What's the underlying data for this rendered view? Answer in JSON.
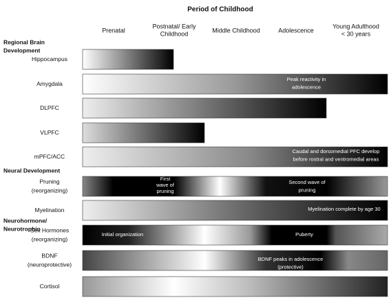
{
  "title": "Period of Childhood",
  "columns": [
    [
      "Prenatal"
    ],
    [
      "Postnatal/ Early",
      "Childhood"
    ],
    [
      "Middle Childhood"
    ],
    [
      "Adolescence"
    ],
    [
      "Young Adulthood",
      "< 30 years"
    ]
  ],
  "sections": [
    {
      "label": [
        "Regional Brain",
        "Development"
      ],
      "rows": [
        {
          "label": [
            "Hippocampus"
          ],
          "annotations": []
        },
        {
          "label": [
            "Amygdala"
          ],
          "annotations": [
            [
              "Peak reactivity in",
              "adolescence"
            ]
          ]
        },
        {
          "label": [
            "DLPFC"
          ],
          "annotations": []
        },
        {
          "label": [
            "VLPFC"
          ],
          "annotations": []
        },
        {
          "label": [
            "mPFC/ACC"
          ],
          "annotations": [
            [
              "Caudal and dorsomedial PFC develop",
              "before rostral and ventromedial areas"
            ]
          ]
        }
      ]
    },
    {
      "label": [
        "Neural Development"
      ],
      "rows": [
        {
          "label": [
            "Pruning",
            "(reorganizing)"
          ],
          "annotations": [
            [
              "First",
              "wave of",
              "pruning"
            ],
            [
              "Second wave of",
              "pruning"
            ]
          ]
        },
        {
          "label": [
            "Myelination"
          ],
          "annotations": [
            [
              "Myelination complete by age 30"
            ]
          ]
        }
      ]
    },
    {
      "label": [
        "Neurohormone/",
        "Neurotrophin"
      ],
      "rows": [
        {
          "label": [
            "Sex Hormones",
            "(reorganizing)"
          ],
          "annotations": [
            [
              "Initial organization"
            ],
            [
              "Puberty"
            ]
          ]
        },
        {
          "label": [
            "BDNF",
            "(neuroprotective)"
          ],
          "annotations": [
            [
              "BDNF peaks in adolescence",
              "(protective)"
            ]
          ]
        },
        {
          "label": [
            "Cortisol"
          ],
          "annotations": []
        }
      ]
    }
  ]
}
